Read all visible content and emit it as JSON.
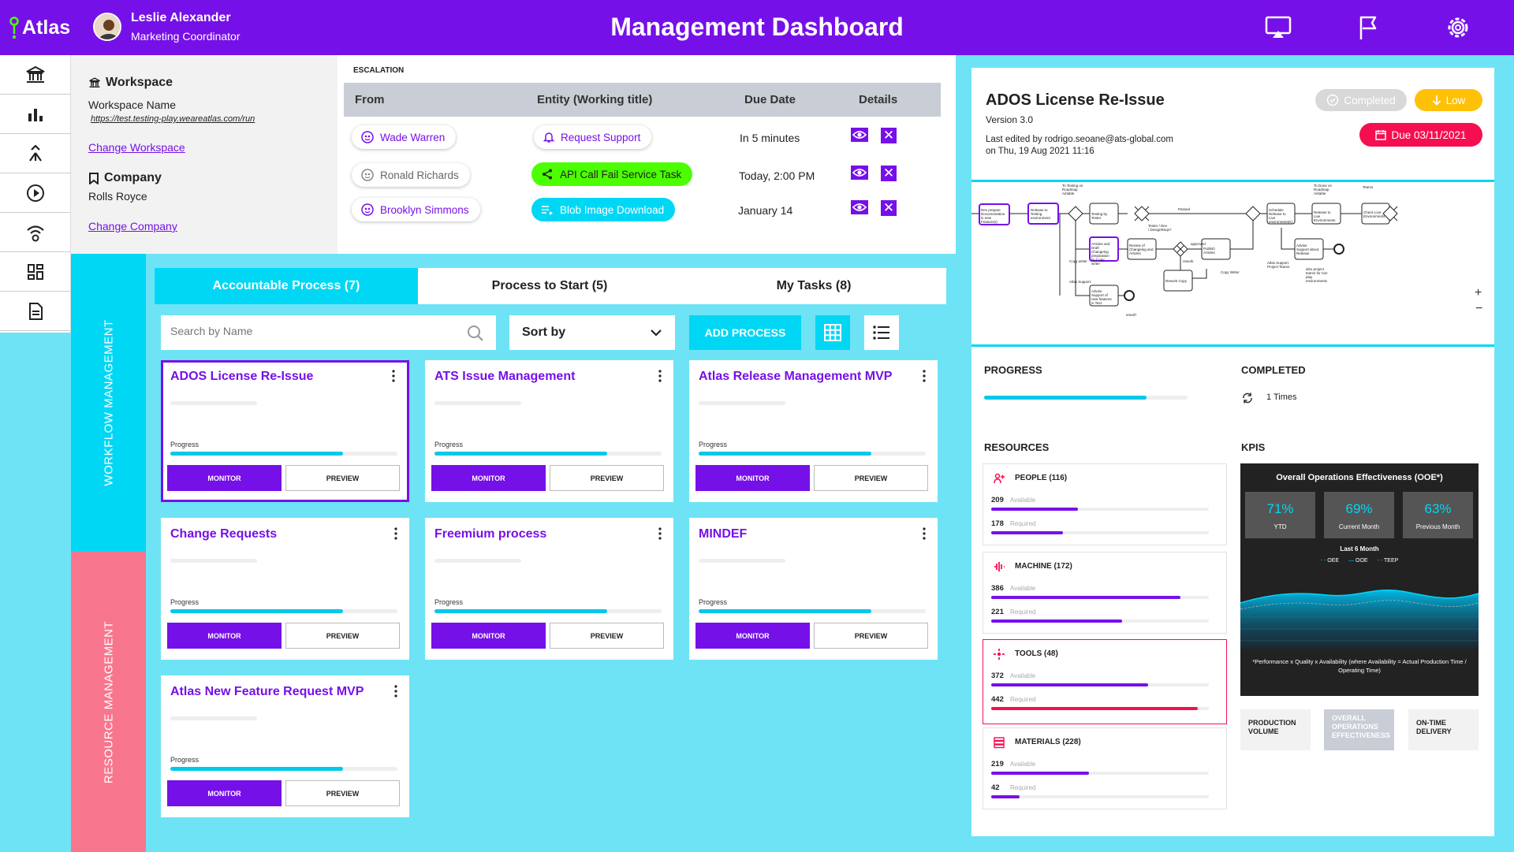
{
  "app": {
    "name": "Atlas"
  },
  "user": {
    "name": "Leslie Alexander",
    "role": "Marketing Coordinator"
  },
  "header": {
    "title": "Management Dashboard"
  },
  "workspace": {
    "heading": "Workspace",
    "name": "Workspace Name",
    "url": "https://test.testing-play.weareatlas.com/run",
    "change_label": "Change Workspace"
  },
  "company": {
    "heading": "Company",
    "name": "Rolls Royce",
    "change_label": "Change Company"
  },
  "escalation": {
    "title": "ESCALATION",
    "headers": {
      "from": "From",
      "entity": "Entity (Working title)",
      "due": "Due Date",
      "details": "Details"
    },
    "rows": [
      {
        "from": "Wade Warren",
        "entity": "Request Support",
        "due": "In 5 minutes"
      },
      {
        "from": "Ronald Richards",
        "entity": "API Call Fail Service Task",
        "due": "Today, 2:00 PM"
      },
      {
        "from": "Brooklyn Simmons",
        "entity": "Blob Image Download",
        "due": "January 14"
      }
    ]
  },
  "vertical_tabs": {
    "workflow": "WORKFLOW MANAGEMENT",
    "resource": "RESOURCE MANAGEMENT"
  },
  "tabs": [
    "Accountable Process (7)",
    "Process to Start (5)",
    "My Tasks (8)"
  ],
  "toolbar": {
    "search_placeholder": "Search by Name",
    "sort_label": "Sort by",
    "add_label": "ADD PROCESS"
  },
  "cards": [
    {
      "title": "ADOS License Re-Issue",
      "progress_label": "Progress",
      "progress": 0.76,
      "monitor": "MONITOR",
      "preview": "PREVIEW"
    },
    {
      "title": "ATS Issue Management",
      "progress_label": "Progress",
      "progress": 0.76,
      "monitor": "MONITOR",
      "preview": "PREVIEW"
    },
    {
      "title": "Atlas Release Management MVP",
      "progress_label": "Progress",
      "progress": 0.76,
      "monitor": "MONITOR",
      "preview": "PREVIEW"
    },
    {
      "title": "Change Requests",
      "progress_label": "Progress",
      "progress": 0.76,
      "monitor": "MONITOR",
      "preview": "PREVIEW"
    },
    {
      "title": "Freemium process",
      "progress_label": "Progress",
      "progress": 0.76,
      "monitor": "MONITOR",
      "preview": "PREVIEW"
    },
    {
      "title": "MINDEF",
      "progress_label": "Progress",
      "progress": 0.76,
      "monitor": "MONITOR",
      "preview": "PREVIEW"
    },
    {
      "title": "Atlas New Feature Request MVP",
      "progress_label": "Progress",
      "progress": 0.76,
      "monitor": "MONITOR",
      "preview": "PREVIEW"
    }
  ],
  "detail": {
    "title": "ADOS License Re-Issue",
    "version": "Version 3.0",
    "edited_line1": "Last edited by rodrigo.seoane@ats-global.com",
    "edited_line2": "on Thu, 19 Aug 2021 11:16",
    "status": "Completed",
    "priority": "Low",
    "due": "Due 03/11/2021",
    "progress_label": "PROGRESS",
    "progress": 0.8,
    "completed_label": "COMPLETED",
    "completed_value": "1 Times",
    "resources_label": "RESOURCES",
    "kpis_label": "KPIS"
  },
  "bpmn": {
    "tasks": [
      "Dev prepare Documentation in new Feature(s)",
      "Release to Testing environment",
      "Testing by Tester",
      "Articles and Draft Changelog preparation by Copy writer",
      "Review of Changelog and Articles",
      "Publish Articles",
      "Rework Copy",
      "Schedule Release to Live environment(s)",
      "Release to Live Environments",
      "Check Live Environments",
      "Advise Support about Release",
      "Advise Support of new features in Test"
    ],
    "labels": [
      "Tester / Dev / DesignReqs?",
      "Passed",
      "approved",
      "rework",
      "Copy writer",
      "Atlas Support",
      "Copy Writer",
      "email?",
      "Atlas Support Project Teams",
      "also project teams for non play environments",
      "To Testing on Roadmap Airtable",
      "To Done on Roadmap Airtable",
      "Teams"
    ]
  },
  "resources": [
    {
      "title": "PEOPLE (116)",
      "available": 209,
      "required": 178,
      "available_label": "Available",
      "required_label": "Required",
      "avail_frac": 0.4,
      "req_frac": 0.33,
      "alert": false,
      "icon": "people-icon"
    },
    {
      "title": "MACHINE (172)",
      "available": 386,
      "required": 221,
      "available_label": "Available",
      "required_label": "Required",
      "avail_frac": 0.87,
      "req_frac": 0.6,
      "alert": false,
      "icon": "machine-icon"
    },
    {
      "title": "TOOLS (48)",
      "available": 372,
      "required": 442,
      "available_label": "Available",
      "required_label": "Required",
      "avail_frac": 0.72,
      "req_frac": 0.95,
      "alert": true,
      "icon": "tools-icon"
    },
    {
      "title": "MATERIALS (228)",
      "available": 219,
      "required": 42,
      "available_label": "Available",
      "required_label": "Required",
      "avail_frac": 0.45,
      "req_frac": 0.13,
      "alert": false,
      "icon": "materials-icon"
    }
  ],
  "kpi": {
    "title": "Overall Operations Effectiveness (OOE*)",
    "boxes": [
      {
        "value": "71%",
        "label": "YTD"
      },
      {
        "value": "69%",
        "label": "Current Month"
      },
      {
        "value": "63%",
        "label": "Previous Month"
      }
    ],
    "period": "Last 6 Month",
    "legend": [
      "OEE",
      "OOE",
      "TEEP"
    ],
    "footnote": "*Performance x Quality x Availability (where Availability = Actual Production Time / Operating Time)",
    "tabs": [
      "PRODUCTION VOLUME",
      "OVERALL OPERATIONS EFFECTIVENESS",
      "ON-TIME DELIVERY"
    ]
  },
  "colors": {
    "primary": "#7610e8",
    "accent": "#00d7f5",
    "background": "#6ee3f5",
    "alert": "#f50f50",
    "warning": "#ffc107",
    "green": "#4cff00"
  }
}
